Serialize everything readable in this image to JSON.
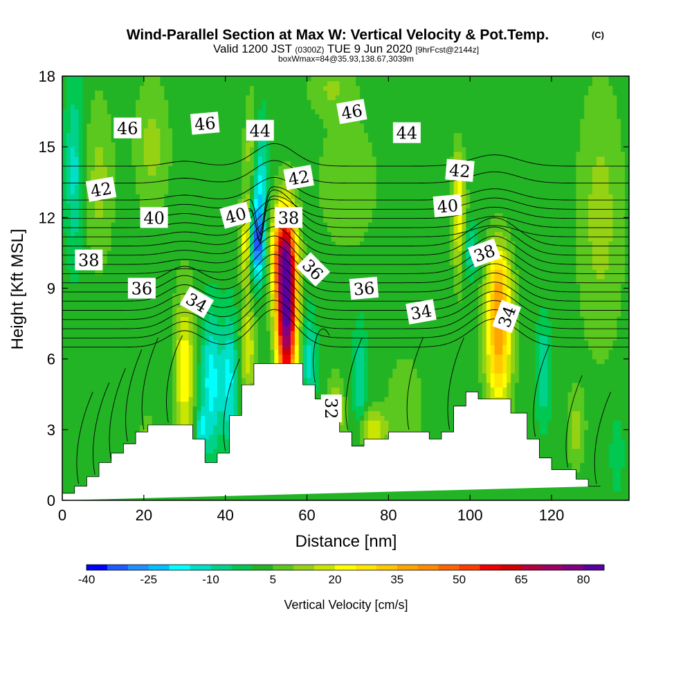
{
  "chart_data": {
    "type": "heatmap",
    "title": "Wind-Parallel Section at Max W: Vertical Velocity & Pot.Temp.",
    "title_mark": "(C)",
    "subtitle": {
      "prefix": "Valid 1200 JST",
      "utc": "(0300Z)",
      "date": "TUE 9 Jun 2020",
      "fcst": "[9hrFcst@2144z]"
    },
    "subtitle2": "boxWmax=84@35.93,138.67,3039m",
    "xlabel": "Distance [nm]",
    "ylabel": "Height [Kft MSL]",
    "xlim": [
      0,
      139
    ],
    "ylim": [
      0,
      18
    ],
    "xticks": [
      0,
      20,
      40,
      60,
      80,
      100,
      120
    ],
    "yticks": [
      0,
      3,
      6,
      9,
      12,
      15,
      18
    ],
    "colorbar": {
      "label": "Vertical Velocity [cm/s]",
      "tick_labels": [
        "-40",
        "-25",
        "-10",
        "5",
        "20",
        "35",
        "50",
        "65",
        "80"
      ],
      "tick_values": [
        -40,
        -25,
        -10,
        5,
        20,
        35,
        50,
        65,
        80
      ],
      "min": -40,
      "step": 5,
      "colors": [
        "#0000ff",
        "#1e5cff",
        "#1e90ff",
        "#00c0ff",
        "#00ffff",
        "#00e0c8",
        "#00d28c",
        "#00c850",
        "#23b425",
        "#5ac81e",
        "#96d214",
        "#c8e600",
        "#ffff00",
        "#ffe600",
        "#ffc800",
        "#ffa500",
        "#ff8c00",
        "#ff6400",
        "#ff3c00",
        "#f00000",
        "#d20000",
        "#b4003c",
        "#a00064",
        "#820082",
        "#5a00a0"
      ]
    },
    "terrain": {
      "x": [
        0,
        3,
        3,
        6,
        6,
        9,
        9,
        12,
        12,
        15,
        15,
        18,
        18,
        21,
        21,
        24,
        24,
        27,
        27,
        32,
        32,
        35,
        35,
        38,
        38,
        41,
        41,
        44,
        44,
        47,
        47,
        50,
        50,
        59,
        59,
        62,
        62,
        65,
        65,
        68,
        68,
        71,
        71,
        74,
        74,
        80,
        80,
        86,
        86,
        90,
        90,
        93,
        93,
        96,
        96,
        99,
        99,
        102,
        102,
        110,
        110,
        114,
        114,
        117,
        117,
        120,
        120,
        123,
        123,
        126,
        126,
        129,
        129,
        132,
        132,
        139
      ],
      "y": [
        0.3,
        0.3,
        0.6,
        0.6,
        1.0,
        1.0,
        1.6,
        1.6,
        2.0,
        2.0,
        2.4,
        2.4,
        2.9,
        2.9,
        3.2,
        3.2,
        3.2,
        3.2,
        3.2,
        3.2,
        2.6,
        2.6,
        1.6,
        1.6,
        2.0,
        2.0,
        3.6,
        3.6,
        4.9,
        4.9,
        5.8,
        5.8,
        5.8,
        5.8,
        4.9,
        4.9,
        4.3,
        4.3,
        3.4,
        3.4,
        2.9,
        2.9,
        2.3,
        2.3,
        2.6,
        2.6,
        2.9,
        2.9,
        2.9,
        2.9,
        2.6,
        2.6,
        2.9,
        2.9,
        4.0,
        4.0,
        4.6,
        4.6,
        4.3,
        4.3,
        3.7,
        3.7,
        2.6,
        2.6,
        1.8,
        1.8,
        1.3,
        1.3,
        1.3,
        1.3,
        0.9,
        0.9,
        0.6,
        0.6
      ]
    },
    "w_field": [
      [
        0,
        0,
        0,
        0,
        0,
        0,
        0,
        0,
        0,
        0,
        0,
        0,
        0,
        0,
        0,
        0,
        0,
        0,
        0,
        0,
        0,
        0,
        0,
        0,
        0,
        0,
        0,
        0,
        0,
        0,
        0,
        0,
        0,
        0,
        0,
        0,
        0,
        0,
        0,
        0,
        0,
        0,
        0,
        0,
        0,
        0,
        0,
        0,
        0,
        0,
        0,
        0,
        0,
        0,
        0,
        0,
        0,
        0,
        0,
        0,
        0,
        0,
        0,
        0,
        0,
        0,
        0,
        0,
        0,
        0
      ],
      [
        0,
        0,
        0,
        0,
        0,
        0,
        0,
        0,
        0,
        0,
        0,
        0,
        0,
        0,
        0,
        0,
        0,
        0,
        0,
        0,
        0,
        0,
        0,
        0,
        0,
        0,
        0,
        0,
        0,
        0,
        0,
        0,
        0,
        0,
        0,
        0,
        0,
        0,
        0,
        0,
        0,
        0,
        0,
        0,
        0,
        0,
        0,
        0,
        0,
        0,
        0,
        0,
        0,
        0,
        0,
        0,
        0,
        0,
        0,
        0,
        0,
        0,
        0,
        0,
        0,
        0,
        0,
        0,
        0,
        0
      ]
    ],
    "w_features": [
      {
        "x": 48,
        "y": 13.5,
        "sx": 1.4,
        "sy": 2.0,
        "w": -32
      },
      {
        "x": 47,
        "y": 14.5,
        "sx": 1.4,
        "sy": 1.8,
        "w": 24
      },
      {
        "x": 55,
        "y": 8.0,
        "sx": 1.7,
        "sy": 2.4,
        "w": 82
      },
      {
        "x": 54,
        "y": 10.5,
        "sx": 2.2,
        "sy": 1.4,
        "w": 35
      },
      {
        "x": 48,
        "y": 10.8,
        "sx": 1.2,
        "sy": 1.0,
        "w": -28
      },
      {
        "x": 45,
        "y": 11.0,
        "sx": 1.0,
        "sy": 1.2,
        "w": 22
      },
      {
        "x": 45.5,
        "y": 6.5,
        "sx": 1.3,
        "sy": 1.5,
        "w": 18
      },
      {
        "x": 30,
        "y": 5.5,
        "sx": 1.7,
        "sy": 2.4,
        "w": 22
      },
      {
        "x": 36.5,
        "y": 5.0,
        "sx": 1.8,
        "sy": 2.0,
        "w": -20
      },
      {
        "x": 41,
        "y": 5.2,
        "sx": 1.4,
        "sy": 1.8,
        "w": -18
      },
      {
        "x": 34,
        "y": 3.0,
        "sx": 1.0,
        "sy": 0.6,
        "w": -15
      },
      {
        "x": 107,
        "y": 7.0,
        "sx": 2.2,
        "sy": 2.3,
        "w": 36
      },
      {
        "x": 107,
        "y": 9.5,
        "sx": 2.0,
        "sy": 1.0,
        "w": 12
      },
      {
        "x": 97.5,
        "y": 11.5,
        "sx": 1.2,
        "sy": 1.6,
        "w": 18
      },
      {
        "x": 100,
        "y": 10.6,
        "sx": 1.4,
        "sy": 0.8,
        "w": -14
      },
      {
        "x": 97,
        "y": 13.5,
        "sx": 1.0,
        "sy": 1.2,
        "w": 12
      },
      {
        "x": 3,
        "y": 14.0,
        "sx": 1.5,
        "sy": 2.5,
        "w": -14
      },
      {
        "x": 9,
        "y": 13.5,
        "sx": 2.5,
        "sy": 2.5,
        "w": 10
      },
      {
        "x": 22,
        "y": 15.0,
        "sx": 3.0,
        "sy": 2.0,
        "w": 10
      },
      {
        "x": 132,
        "y": 12.0,
        "sx": 4.0,
        "sy": 4.0,
        "w": 10
      },
      {
        "x": 70,
        "y": 13.5,
        "sx": 5.0,
        "sy": 2.0,
        "w": 8
      },
      {
        "x": 60.5,
        "y": 6.0,
        "sx": 1.2,
        "sy": 1.4,
        "w": -14
      },
      {
        "x": 73,
        "y": 5.0,
        "sx": 1.2,
        "sy": 1.6,
        "w": -12
      },
      {
        "x": 67,
        "y": 3.8,
        "sx": 1.5,
        "sy": 1.0,
        "w": 15
      },
      {
        "x": 76,
        "y": 3.0,
        "sx": 2.5,
        "sy": 0.6,
        "w": 18
      },
      {
        "x": 84,
        "y": 4.0,
        "sx": 3.0,
        "sy": 1.5,
        "w": 8
      },
      {
        "x": 118,
        "y": 5.5,
        "sx": 1.2,
        "sy": 1.5,
        "w": -12
      },
      {
        "x": 126,
        "y": 3.0,
        "sx": 1.5,
        "sy": 1.2,
        "w": 10
      },
      {
        "x": 21,
        "y": 2.5,
        "sx": 1.2,
        "sy": 0.8,
        "w": 10
      },
      {
        "x": 136,
        "y": 2.0,
        "sx": 1.0,
        "sy": 1.0,
        "w": -8
      },
      {
        "x": 66,
        "y": 17.5,
        "sx": 4.0,
        "sy": 0.8,
        "w": 8
      }
    ],
    "theta_contours": [
      30,
      31,
      32,
      33,
      34,
      35,
      36,
      37,
      38,
      39,
      40,
      41,
      42,
      43,
      44,
      45,
      46,
      47,
      48
    ],
    "contour_labels": [
      {
        "text": "46",
        "x": 16,
        "y": 15.8,
        "angle": 0
      },
      {
        "text": "46",
        "x": 35,
        "y": 16.0,
        "angle": -5
      },
      {
        "text": "44",
        "x": 48.5,
        "y": 15.7,
        "angle": 0
      },
      {
        "text": "46",
        "x": 71,
        "y": 16.5,
        "angle": -10
      },
      {
        "text": "44",
        "x": 84.5,
        "y": 15.6,
        "angle": 0
      },
      {
        "text": "42",
        "x": 97.5,
        "y": 14.0,
        "angle": 5
      },
      {
        "text": "42",
        "x": 9.5,
        "y": 13.2,
        "angle": -10
      },
      {
        "text": "42",
        "x": 58,
        "y": 13.7,
        "angle": -10
      },
      {
        "text": "40",
        "x": 22.5,
        "y": 12.0,
        "angle": 0
      },
      {
        "text": "40",
        "x": 42.5,
        "y": 12.1,
        "angle": -15
      },
      {
        "text": "40",
        "x": 94.5,
        "y": 12.5,
        "angle": -5
      },
      {
        "text": "38",
        "x": 55.5,
        "y": 12.0,
        "angle": 0
      },
      {
        "text": "38",
        "x": 6.5,
        "y": 10.2,
        "angle": 0
      },
      {
        "text": "38",
        "x": 103.5,
        "y": 10.5,
        "angle": -20
      },
      {
        "text": "36",
        "x": 61.5,
        "y": 9.8,
        "angle": 45
      },
      {
        "text": "36",
        "x": 19.5,
        "y": 9.0,
        "angle": 0
      },
      {
        "text": "36",
        "x": 74,
        "y": 9.0,
        "angle": -5
      },
      {
        "text": "34",
        "x": 33,
        "y": 8.4,
        "angle": 30
      },
      {
        "text": "34",
        "x": 88,
        "y": 8.0,
        "angle": -10
      },
      {
        "text": "34",
        "x": 109,
        "y": 7.8,
        "angle": -70
      },
      {
        "text": "32",
        "x": 66,
        "y": 3.9,
        "angle": 90
      }
    ]
  }
}
